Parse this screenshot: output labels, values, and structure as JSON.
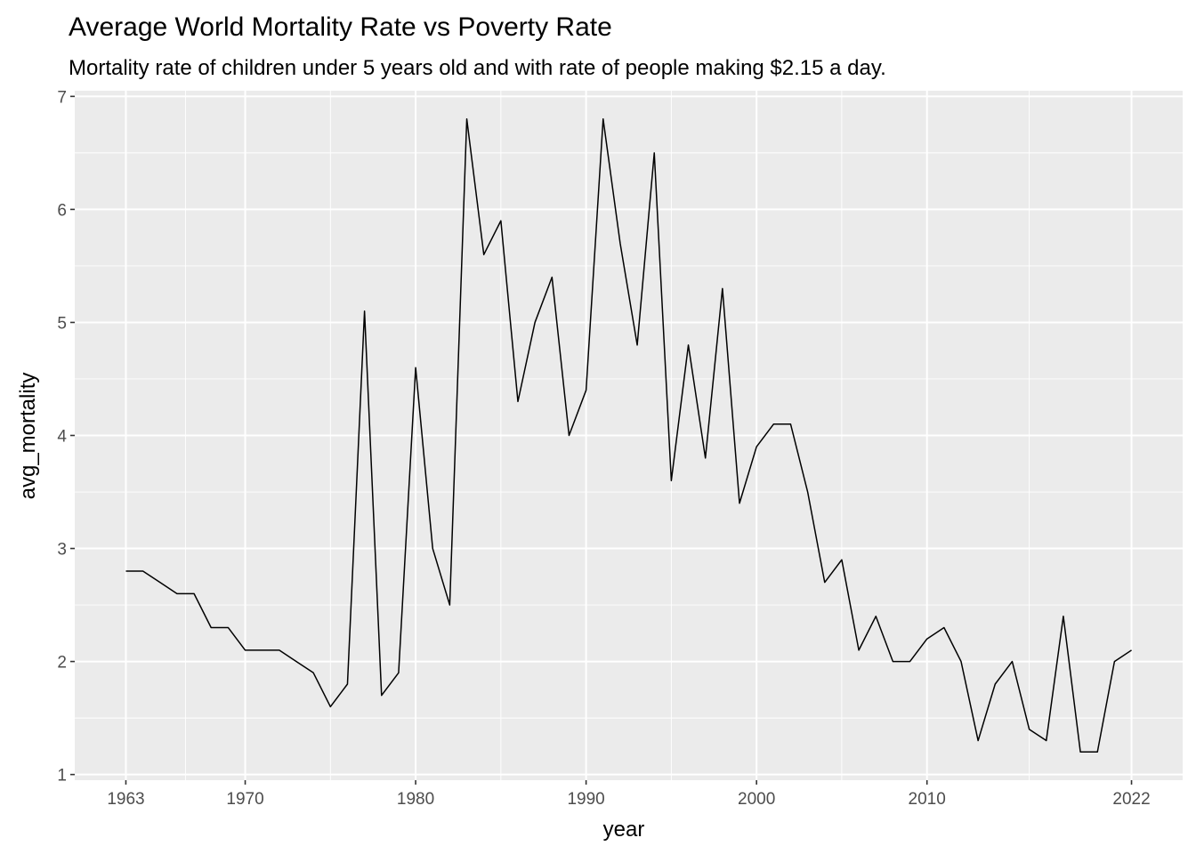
{
  "chart_data": {
    "type": "line",
    "title": "Average World Mortality Rate vs Poverty Rate",
    "subtitle": "Mortality rate of children under 5 years old and with rate of people making  $2.15 a day.",
    "xlabel": "year",
    "ylabel": "avg_mortality",
    "xlim": [
      1960,
      2025
    ],
    "ylim": [
      0.95,
      7.05
    ],
    "x_ticks": [
      1963,
      1970,
      1980,
      1990,
      2000,
      2010,
      2022
    ],
    "y_ticks": [
      1,
      2,
      3,
      4,
      5,
      6,
      7
    ],
    "grid": true,
    "legend": "none",
    "line_color": "#000000",
    "panel_background": "#ebebeb",
    "grid_color": "#ffffff",
    "series": [
      {
        "x": [
          1963,
          1964,
          1965,
          1966,
          1967,
          1968,
          1969,
          1970,
          1971,
          1972,
          1973,
          1974,
          1975,
          1976,
          1977,
          1978,
          1979,
          1980,
          1981,
          1982,
          1983,
          1984,
          1985,
          1986,
          1987,
          1988,
          1989,
          1990,
          1991,
          1992,
          1993,
          1994,
          1995,
          1996,
          1997,
          1998,
          1999,
          2000,
          2001,
          2002,
          2003,
          2004,
          2005,
          2006,
          2007,
          2008,
          2009,
          2010,
          2011,
          2012,
          2013,
          2014,
          2015,
          2016,
          2017,
          2018,
          2019,
          2020,
          2021,
          2022
        ],
        "values": [
          2.8,
          2.8,
          2.7,
          2.6,
          2.6,
          2.3,
          2.3,
          2.1,
          2.1,
          2.1,
          2.0,
          1.9,
          1.6,
          1.8,
          5.1,
          1.7,
          1.9,
          4.6,
          3.0,
          2.5,
          6.8,
          5.6,
          5.9,
          4.3,
          5.0,
          5.4,
          4.0,
          4.4,
          6.8,
          5.7,
          4.8,
          6.5,
          3.6,
          4.8,
          3.8,
          5.3,
          3.4,
          3.9,
          4.1,
          4.1,
          3.5,
          2.7,
          2.9,
          2.1,
          2.4,
          2.0,
          2.0,
          2.2,
          2.3,
          2.0,
          1.3,
          1.8,
          2.0,
          1.4,
          1.3,
          2.4,
          1.2,
          1.2,
          2.0,
          2.1
        ]
      }
    ]
  }
}
